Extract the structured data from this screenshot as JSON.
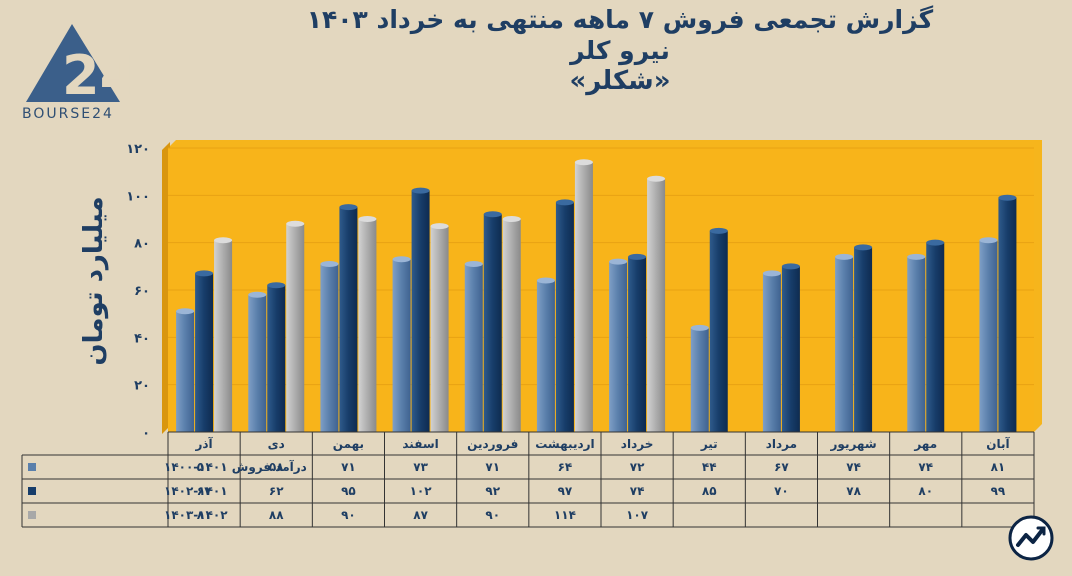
{
  "logo": {
    "text": "BOURSE24"
  },
  "title": {
    "line1": "گزارش تجمعی فروش ۷ ماهه منتهی به خرداد ۱۴۰۳",
    "line2": "نیرو کلر",
    "line3": "«شکلر»"
  },
  "chart_data": {
    "type": "bar",
    "title": "گزارش تجمعی فروش ۷ ماهه منتهی به خرداد ۱۴۰۳",
    "ylabel": "میلیارد تومان",
    "ylim": [
      0,
      120
    ],
    "yticks": [
      0,
      20,
      40,
      60,
      80,
      100,
      120
    ],
    "ytick_labels": [
      "۰",
      "۲۰",
      "۴۰",
      "۶۰",
      "۸۰",
      "۱۰۰",
      "۱۲۰"
    ],
    "categories": [
      "آذر",
      "دی",
      "بهمن",
      "اسفند",
      "فروردین",
      "اردیبهشت",
      "خرداد",
      "تیر",
      "مرداد",
      "شهریور",
      "مهر",
      "آبان"
    ],
    "series": [
      {
        "name": "درآمد فروش ۱۴۰۱-۱۴۰۰",
        "color": "#5a7fab",
        "values": [
          51,
          58,
          71,
          73,
          71,
          64,
          72,
          44,
          67,
          74,
          74,
          81
        ],
        "labels": [
          "۵۱",
          "۵۸",
          "۷۱",
          "۷۳",
          "۷۱",
          "۶۴",
          "۷۲",
          "۴۴",
          "۶۷",
          "۷۴",
          "۷۴",
          "۸۱"
        ]
      },
      {
        "name": "۱۴۰۲-۱۴۰۱",
        "color": "#173d6a",
        "values": [
          67,
          62,
          95,
          102,
          92,
          97,
          74,
          85,
          70,
          78,
          80,
          99
        ],
        "labels": [
          "۶۷",
          "۶۲",
          "۹۵",
          "۱۰۲",
          "۹۲",
          "۹۷",
          "۷۴",
          "۸۵",
          "۷۰",
          "۷۸",
          "۸۰",
          "۹۹"
        ]
      },
      {
        "name": "۱۴۰۳-۱۴۰۲",
        "color": "#a8a8a8",
        "values": [
          81,
          88,
          90,
          87,
          90,
          114,
          107,
          null,
          null,
          null,
          null,
          null
        ],
        "labels": [
          "۸۱",
          "۸۸",
          "۹۰",
          "۸۷",
          "۹۰",
          "۱۱۴",
          "۱۰۷",
          "",
          "",
          "",
          "",
          ""
        ]
      }
    ]
  }
}
